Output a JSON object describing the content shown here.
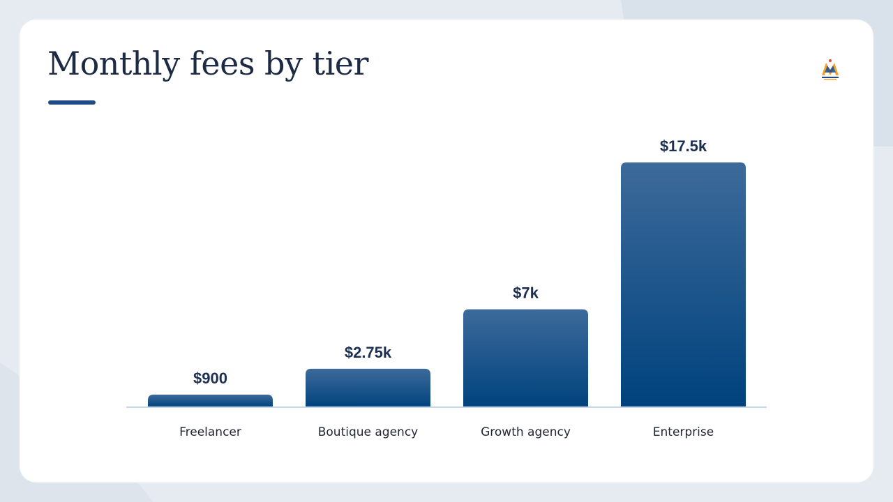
{
  "slide": {
    "title": "Monthly fees by tier"
  },
  "colors": {
    "accent": "#1e4a86",
    "bar_top": "#3d6a9a",
    "bar_bottom": "#00427d",
    "baseline": "#c5d7e6",
    "title": "#1c2a44"
  },
  "logo": {
    "icon": "company-logo-icon"
  },
  "chart_data": {
    "type": "bar",
    "title": "",
    "xlabel": "",
    "ylabel": "",
    "categories": [
      "Freelancer",
      "Boutique agency",
      "Growth agency",
      "Enterprise"
    ],
    "values": [
      900,
      2750,
      7000,
      17500
    ],
    "value_labels": [
      "$900",
      "$2.75k",
      "$7k",
      "$17.5k"
    ],
    "ylim": [
      0,
      17500
    ],
    "grid": false,
    "legend": "none"
  }
}
